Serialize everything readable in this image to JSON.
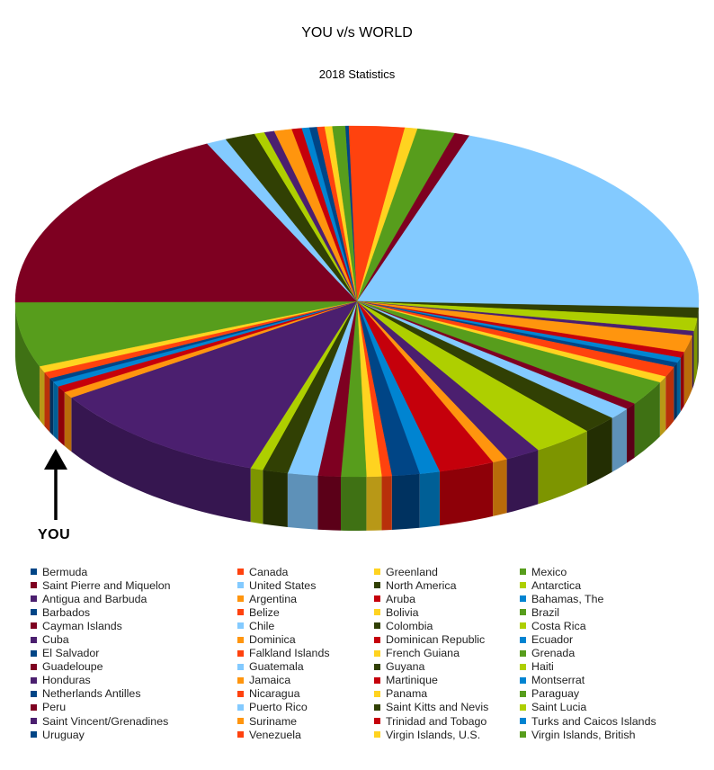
{
  "chart_data": {
    "type": "pie",
    "title": "YOU v/s WORLD",
    "subtitle": "2018 Statistics",
    "annotation": "YOU",
    "legend_placement": "bottom",
    "palette": [
      "#004586",
      "#ff420e",
      "#ffd320",
      "#579d1c",
      "#7e0021",
      "#83caff",
      "#314004",
      "#aecf00",
      "#4b1f6f",
      "#ff950e",
      "#c5000b",
      "#0084d1"
    ],
    "categories": [
      "Bermuda",
      "Canada",
      "Greenland",
      "Mexico",
      "Saint Pierre and Miquelon",
      "United States",
      "North America",
      "Antarctica",
      "Antigua and Barbuda",
      "Argentina",
      "Aruba",
      "Bahamas, The",
      "Barbados",
      "Belize",
      "Bolivia",
      "Brazil",
      "Cayman Islands",
      "Chile",
      "Colombia",
      "Costa Rica",
      "Cuba",
      "Dominica",
      "Dominican Republic",
      "Ecuador",
      "El Salvador",
      "Falkland Islands",
      "French Guiana",
      "Grenada",
      "Guadeloupe",
      "Guatemala",
      "Guyana",
      "Haiti",
      "Honduras",
      "Jamaica",
      "Martinique",
      "Montserrat",
      "Netherlands Antilles",
      "Nicaragua",
      "Panama",
      "Paraguay",
      "Peru",
      "Puerto Rico",
      "Saint Kitts and Nevis",
      "Saint Lucia",
      "Saint Vincent/Grenadines",
      "Suriname",
      "Trinidad and Tobago",
      "Turks and Caicos Islands",
      "Uruguay",
      "Venezuela",
      "Virgin Islands,  U.S.",
      "Virgin Islands, British"
    ],
    "values": [
      0.15,
      2.2,
      0.5,
      1.5,
      0.6,
      17.0,
      0.8,
      1.0,
      0.35,
      1.3,
      0.45,
      0.4,
      0.35,
      0.8,
      0.5,
      1.9,
      0.5,
      0.9,
      1.4,
      2.4,
      1.4,
      0.6,
      2.2,
      0.8,
      1.1,
      0.4,
      0.6,
      1.0,
      0.9,
      1.2,
      1.0,
      0.5,
      9.0,
      0.5,
      0.5,
      0.4,
      0.3,
      0.5,
      0.5,
      5.0,
      15.0,
      0.8,
      1.2,
      0.4,
      0.4,
      0.7,
      0.4,
      0.3,
      0.3,
      0.3,
      0.3,
      0.5
    ]
  }
}
